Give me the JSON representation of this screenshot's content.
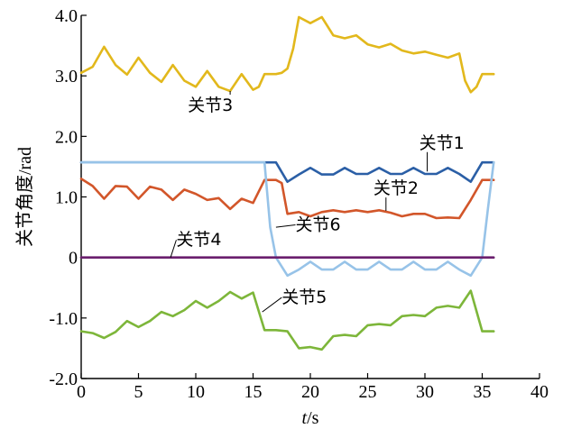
{
  "chart_data": {
    "type": "line",
    "xlabel_italic": "t",
    "xlabel_unit": "/s",
    "ylabel": "关节角度/rad",
    "xlim": [
      0,
      40
    ],
    "ylim": [
      -2.0,
      4.0
    ],
    "x_ticks": [
      0,
      5,
      10,
      15,
      20,
      25,
      30,
      35,
      40
    ],
    "x_tick_labels": [
      "0",
      "5",
      "10",
      "15",
      "20",
      "25",
      "30",
      "35",
      "40"
    ],
    "y_ticks": [
      -2.0,
      -1.0,
      0,
      1.0,
      2.0,
      3.0,
      4.0
    ],
    "y_tick_labels": [
      "-2.0",
      "-1.0",
      "0",
      "1.0",
      "2.0",
      "3.0",
      "4.0"
    ],
    "grid": false,
    "series": [
      {
        "name": "关节3",
        "color": "#E2B81C",
        "points": [
          [
            0,
            3.05
          ],
          [
            1,
            3.15
          ],
          [
            2,
            3.48
          ],
          [
            3,
            3.18
          ],
          [
            4,
            3.02
          ],
          [
            5,
            3.3
          ],
          [
            6,
            3.05
          ],
          [
            7,
            2.9
          ],
          [
            8,
            3.18
          ],
          [
            9,
            2.92
          ],
          [
            10,
            2.82
          ],
          [
            11,
            3.08
          ],
          [
            12,
            2.82
          ],
          [
            13,
            2.75
          ],
          [
            14,
            3.03
          ],
          [
            15,
            2.77
          ],
          [
            15.5,
            2.82
          ],
          [
            16,
            3.03
          ],
          [
            17,
            3.03
          ],
          [
            17.5,
            3.05
          ],
          [
            18,
            3.12
          ],
          [
            18.5,
            3.45
          ],
          [
            19,
            3.97
          ],
          [
            20,
            3.87
          ],
          [
            21,
            3.97
          ],
          [
            22,
            3.67
          ],
          [
            23,
            3.62
          ],
          [
            24,
            3.67
          ],
          [
            25,
            3.52
          ],
          [
            26,
            3.47
          ],
          [
            27,
            3.53
          ],
          [
            28,
            3.42
          ],
          [
            29,
            3.37
          ],
          [
            30,
            3.4
          ],
          [
            31,
            3.35
          ],
          [
            32,
            3.3
          ],
          [
            33,
            3.37
          ],
          [
            33.5,
            2.92
          ],
          [
            34,
            2.73
          ],
          [
            34.5,
            2.82
          ],
          [
            35,
            3.03
          ],
          [
            36,
            3.03
          ]
        ]
      },
      {
        "name": "关节1",
        "color": "#2B5FA6",
        "points": [
          [
            0,
            1.57
          ],
          [
            16,
            1.57
          ],
          [
            17,
            1.57
          ],
          [
            18,
            1.25
          ],
          [
            19,
            1.37
          ],
          [
            20,
            1.48
          ],
          [
            21,
            1.37
          ],
          [
            22,
            1.37
          ],
          [
            23,
            1.48
          ],
          [
            24,
            1.38
          ],
          [
            25,
            1.38
          ],
          [
            26,
            1.48
          ],
          [
            27,
            1.38
          ],
          [
            28,
            1.38
          ],
          [
            29,
            1.48
          ],
          [
            30,
            1.38
          ],
          [
            31,
            1.38
          ],
          [
            32,
            1.48
          ],
          [
            33,
            1.38
          ],
          [
            34,
            1.25
          ],
          [
            35,
            1.57
          ],
          [
            36,
            1.57
          ]
        ]
      },
      {
        "name": "关节2",
        "color": "#D2562A",
        "points": [
          [
            0,
            1.3
          ],
          [
            1,
            1.18
          ],
          [
            2,
            0.97
          ],
          [
            3,
            1.18
          ],
          [
            4,
            1.17
          ],
          [
            5,
            0.97
          ],
          [
            6,
            1.17
          ],
          [
            7,
            1.12
          ],
          [
            8,
            0.95
          ],
          [
            9,
            1.12
          ],
          [
            10,
            1.05
          ],
          [
            11,
            0.95
          ],
          [
            12,
            0.98
          ],
          [
            13,
            0.8
          ],
          [
            14,
            0.97
          ],
          [
            15,
            0.9
          ],
          [
            16,
            1.28
          ],
          [
            17,
            1.28
          ],
          [
            17.5,
            1.23
          ],
          [
            18,
            0.72
          ],
          [
            19,
            0.75
          ],
          [
            20,
            0.68
          ],
          [
            21,
            0.75
          ],
          [
            22,
            0.78
          ],
          [
            23,
            0.75
          ],
          [
            24,
            0.78
          ],
          [
            25,
            0.75
          ],
          [
            26,
            0.78
          ],
          [
            27,
            0.74
          ],
          [
            28,
            0.68
          ],
          [
            29,
            0.72
          ],
          [
            30,
            0.72
          ],
          [
            31,
            0.65
          ],
          [
            32,
            0.66
          ],
          [
            33,
            0.65
          ],
          [
            34,
            0.95
          ],
          [
            35,
            1.28
          ],
          [
            36,
            1.28
          ]
        ]
      },
      {
        "name": "关节6",
        "color": "#97C3E8",
        "points": [
          [
            0,
            1.57
          ],
          [
            16,
            1.57
          ],
          [
            16.5,
            0.5
          ],
          [
            17,
            0.0
          ],
          [
            18,
            -0.3
          ],
          [
            19,
            -0.2
          ],
          [
            20,
            -0.07
          ],
          [
            21,
            -0.2
          ],
          [
            22,
            -0.2
          ],
          [
            23,
            -0.07
          ],
          [
            24,
            -0.2
          ],
          [
            25,
            -0.2
          ],
          [
            26,
            -0.07
          ],
          [
            27,
            -0.2
          ],
          [
            28,
            -0.2
          ],
          [
            29,
            -0.07
          ],
          [
            30,
            -0.2
          ],
          [
            31,
            -0.2
          ],
          [
            32,
            -0.07
          ],
          [
            33,
            -0.2
          ],
          [
            34,
            -0.3
          ],
          [
            35,
            0.0
          ],
          [
            35.5,
            0.8
          ],
          [
            36,
            1.57
          ]
        ]
      },
      {
        "name": "关节4",
        "color": "#6A1F6E",
        "points": [
          [
            0,
            0
          ],
          [
            36,
            0
          ]
        ]
      },
      {
        "name": "关节5",
        "color": "#7DB63A",
        "points": [
          [
            0,
            -1.22
          ],
          [
            1,
            -1.25
          ],
          [
            2,
            -1.33
          ],
          [
            3,
            -1.23
          ],
          [
            4,
            -1.05
          ],
          [
            5,
            -1.15
          ],
          [
            6,
            -1.05
          ],
          [
            7,
            -0.9
          ],
          [
            8,
            -0.97
          ],
          [
            9,
            -0.87
          ],
          [
            10,
            -0.72
          ],
          [
            11,
            -0.83
          ],
          [
            12,
            -0.72
          ],
          [
            13,
            -0.57
          ],
          [
            14,
            -0.68
          ],
          [
            15,
            -0.58
          ],
          [
            16,
            -1.2
          ],
          [
            17,
            -1.2
          ],
          [
            18,
            -1.22
          ],
          [
            19,
            -1.5
          ],
          [
            20,
            -1.48
          ],
          [
            21,
            -1.52
          ],
          [
            22,
            -1.3
          ],
          [
            23,
            -1.28
          ],
          [
            24,
            -1.3
          ],
          [
            25,
            -1.12
          ],
          [
            26,
            -1.1
          ],
          [
            27,
            -1.12
          ],
          [
            28,
            -0.97
          ],
          [
            29,
            -0.95
          ],
          [
            30,
            -0.97
          ],
          [
            31,
            -0.83
          ],
          [
            32,
            -0.8
          ],
          [
            33,
            -0.83
          ],
          [
            34,
            -0.55
          ],
          [
            35,
            -1.22
          ],
          [
            36,
            -1.22
          ]
        ]
      }
    ],
    "annotations": [
      {
        "text": "关节3",
        "series": "关节3",
        "at": [
          13,
          2.75
        ],
        "label_at": [
          9.3,
          2.42
        ]
      },
      {
        "text": "关节1",
        "series": "关节1",
        "at": [
          30.2,
          1.42
        ],
        "label_at": [
          29.5,
          1.8
        ]
      },
      {
        "text": "关节2",
        "series": "关节2",
        "at": [
          26.6,
          0.77
        ],
        "label_at": [
          25.5,
          1.05
        ]
      },
      {
        "text": "关节6",
        "series": "关节6",
        "at": [
          17,
          0.5
        ],
        "label_at": [
          18.7,
          0.45
        ]
      },
      {
        "text": "关节4",
        "series": "关节4",
        "at": [
          7.8,
          0
        ],
        "label_at": [
          8.3,
          0.2
        ]
      },
      {
        "text": "关节5",
        "series": "关节5",
        "at": [
          15.8,
          -0.9
        ],
        "label_at": [
          17.5,
          -0.75
        ]
      }
    ]
  }
}
